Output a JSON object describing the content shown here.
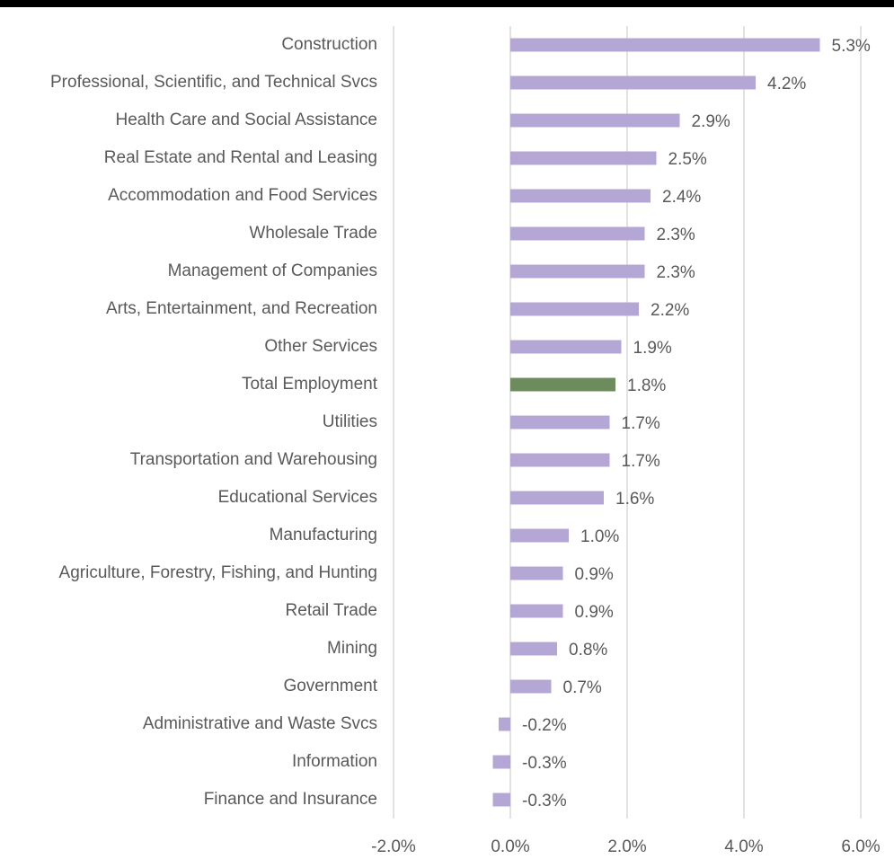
{
  "chart_data": {
    "type": "hbar",
    "categories": [
      "Construction",
      "Professional, Scientific, and Technical Svcs",
      "Health Care and Social Assistance",
      "Real Estate and Rental and Leasing",
      "Accommodation and Food Services",
      "Wholesale Trade",
      "Management of Companies",
      "Arts, Entertainment, and Recreation",
      "Other Services",
      "Total Employment",
      "Utilities",
      "Transportation and Warehousing",
      "Educational Services",
      "Manufacturing",
      "Agriculture, Forestry, Fishing, and Hunting",
      "Retail Trade",
      "Mining",
      "Government",
      "Administrative and Waste Svcs",
      "Information",
      "Finance and Insurance"
    ],
    "values": [
      5.3,
      4.2,
      2.9,
      2.5,
      2.4,
      2.3,
      2.3,
      2.2,
      1.9,
      1.8,
      1.7,
      1.7,
      1.6,
      1.0,
      0.9,
      0.9,
      0.8,
      0.7,
      -0.2,
      -0.3,
      -0.3
    ],
    "value_labels": [
      "5.3%",
      "4.2%",
      "2.9%",
      "2.5%",
      "2.4%",
      "2.3%",
      "2.3%",
      "2.2%",
      "1.9%",
      "1.8%",
      "1.7%",
      "1.7%",
      "1.6%",
      "1.0%",
      "0.9%",
      "0.9%",
      "0.8%",
      "0.7%",
      "-0.2%",
      "-0.3%",
      "-0.3%"
    ],
    "colors": [
      "#b4a7d6",
      "#b4a7d6",
      "#b4a7d6",
      "#b4a7d6",
      "#b4a7d6",
      "#b4a7d6",
      "#b4a7d6",
      "#b4a7d6",
      "#b4a7d6",
      "#6e8b5e",
      "#b4a7d6",
      "#b4a7d6",
      "#b4a7d6",
      "#b4a7d6",
      "#b4a7d6",
      "#b4a7d6",
      "#b4a7d6",
      "#b4a7d6",
      "#b4a7d6",
      "#b4a7d6",
      "#b4a7d6"
    ],
    "xlim": [
      -2,
      6
    ],
    "xticks": [
      {
        "value": -2,
        "label": "-2.0%"
      },
      {
        "value": 0,
        "label": "0.0%"
      },
      {
        "value": 2,
        "label": "2.0%"
      },
      {
        "value": 4,
        "label": "4.0%"
      },
      {
        "value": 6,
        "label": "6.0%"
      }
    ],
    "grid": true
  }
}
